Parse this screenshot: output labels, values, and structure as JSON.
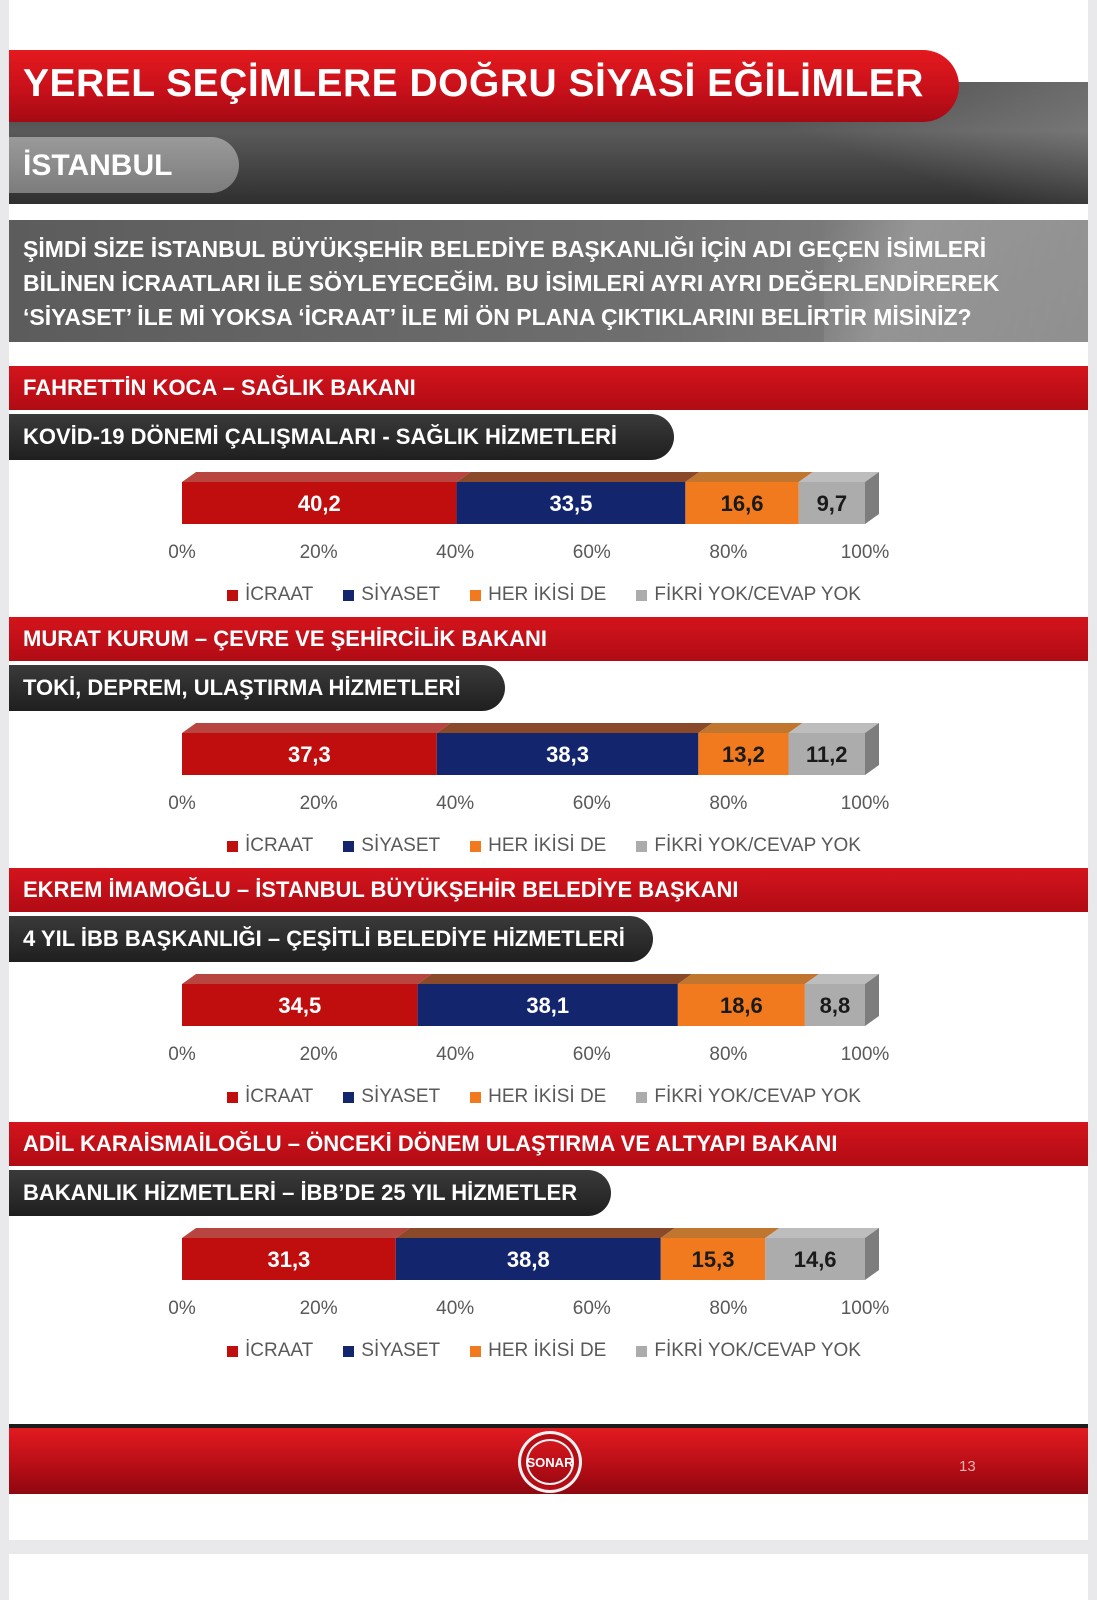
{
  "header": {
    "title": "YEREL SEÇİMLERE DOĞRU SİYASİ EĞİLİMLER",
    "subtitle": "İSTANBUL"
  },
  "question": "ŞİMDİ SİZE İSTANBUL BÜYÜKŞEHİR BELEDİYE BAŞKANLIĞI İÇİN ADI GEÇEN İSİMLERİ BİLİNEN İCRAATLARI İLE SÖYLEYECEĞİM. BU İSİMLERİ AYRI AYRI DEĞERLENDİREREK ‘SİYASET’ İLE Mİ YOKSA ‘İCRAAT’ İLE Mİ ÖN PLANA ÇIKTIKLARINI BELİRTİR MİSİNİZ?",
  "colors": {
    "icraat": "#c00d0d",
    "siyaset": "#13266d",
    "her_ikisi": "#f17a1f",
    "fikri_yok": "#acacac"
  },
  "x_ticks": [
    "0%",
    "20%",
    "40%",
    "60%",
    "80%",
    "100%"
  ],
  "legend": [
    "İCRAAT",
    "SİYASET",
    "HER İKİSİ DE",
    "FİKRİ YOK/CEVAP YOK"
  ],
  "sections": [
    {
      "person": "FAHRETTİN KOCA – SAĞLIK BAKANI",
      "topic": "KOVİD-19 DÖNEMİ ÇALIŞMALARI - SAĞLIK HİZMETLERİ"
    },
    {
      "person": "MURAT KURUM – ÇEVRE VE ŞEHİRCİLİK BAKANI",
      "topic": "TOKİ, DEPREM, ULAŞTIRMA HİZMETLERİ"
    },
    {
      "person": "EKREM İMAMOĞLU – İSTANBUL BÜYÜKŞEHİR BELEDİYE BAŞKANI",
      "topic": "4 YIL İBB BAŞKANLIĞI – ÇEŞİTLİ BELEDİYE HİZMETLERİ"
    },
    {
      "person": "ADİL KARAİSMAİLOĞLU – ÖNCEKİ DÖNEM ULAŞTIRMA VE ALTYAPI BAKANI",
      "topic": "BAKANLIK HİZMETLERİ – İBB’DE 25 YIL HİZMETLER"
    }
  ],
  "chart_data": [
    {
      "type": "bar",
      "stacked": true,
      "orientation": "horizontal",
      "xlim": [
        0,
        100
      ],
      "series": [
        {
          "name": "İCRAAT",
          "values": [
            40.2
          ],
          "label": "40,2"
        },
        {
          "name": "SİYASET",
          "values": [
            33.5
          ],
          "label": "33,5"
        },
        {
          "name": "HER İKİSİ DE",
          "values": [
            16.6
          ],
          "label": "16,6"
        },
        {
          "name": "FİKRİ YOK/CEVAP YOK",
          "values": [
            9.7
          ],
          "label": "9,7"
        }
      ]
    },
    {
      "type": "bar",
      "stacked": true,
      "orientation": "horizontal",
      "xlim": [
        0,
        100
      ],
      "series": [
        {
          "name": "İCRAAT",
          "values": [
            37.3
          ],
          "label": "37,3"
        },
        {
          "name": "SİYASET",
          "values": [
            38.3
          ],
          "label": "38,3"
        },
        {
          "name": "HER İKİSİ DE",
          "values": [
            13.2
          ],
          "label": "13,2"
        },
        {
          "name": "FİKRİ YOK/CEVAP YOK",
          "values": [
            11.2
          ],
          "label": "11,2"
        }
      ]
    },
    {
      "type": "bar",
      "stacked": true,
      "orientation": "horizontal",
      "xlim": [
        0,
        100
      ],
      "series": [
        {
          "name": "İCRAAT",
          "values": [
            34.5
          ],
          "label": "34,5"
        },
        {
          "name": "SİYASET",
          "values": [
            38.1
          ],
          "label": "38,1"
        },
        {
          "name": "HER İKİSİ DE",
          "values": [
            18.6
          ],
          "label": "18,6"
        },
        {
          "name": "FİKRİ YOK/CEVAP YOK",
          "values": [
            8.8
          ],
          "label": "8,8"
        }
      ]
    },
    {
      "type": "bar",
      "stacked": true,
      "orientation": "horizontal",
      "xlim": [
        0,
        100
      ],
      "series": [
        {
          "name": "İCRAAT",
          "values": [
            31.3
          ],
          "label": "31,3"
        },
        {
          "name": "SİYASET",
          "values": [
            38.8
          ],
          "label": "38,8"
        },
        {
          "name": "HER İKİSİ DE",
          "values": [
            15.3
          ],
          "label": "15,3"
        },
        {
          "name": "FİKRİ YOK/CEVAP YOK",
          "values": [
            14.6
          ],
          "label": "14,6"
        }
      ]
    }
  ],
  "footer": {
    "logo_text": "SONAR",
    "page_number": "13"
  }
}
